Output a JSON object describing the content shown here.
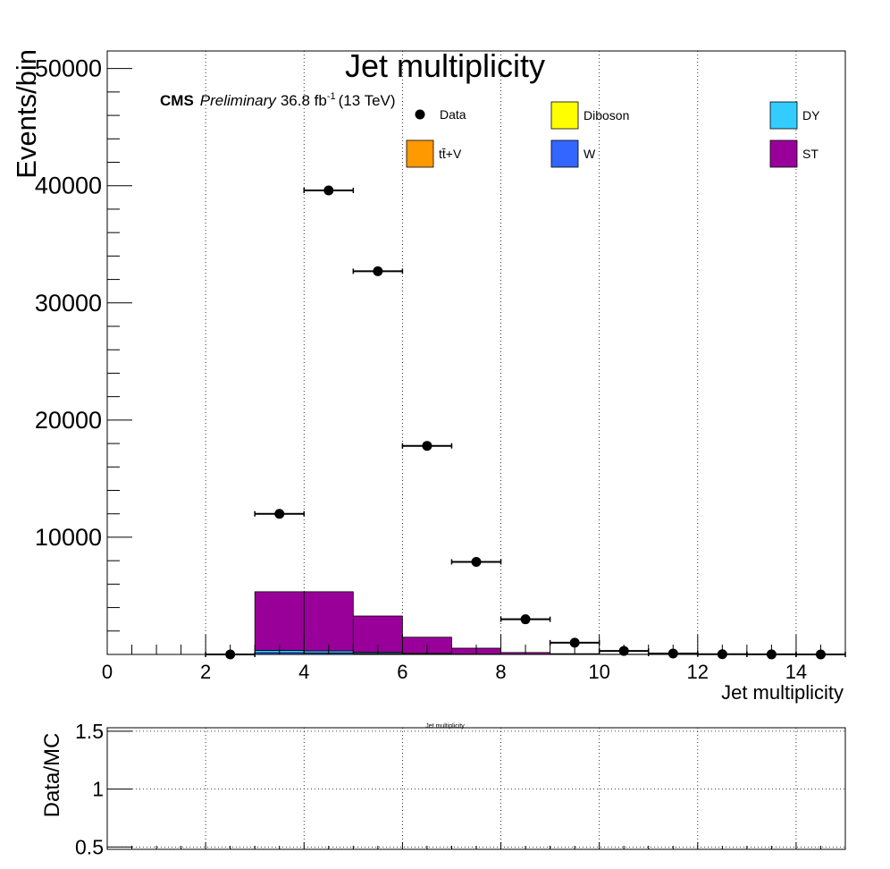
{
  "chart_data": {
    "type": "bar",
    "title": "Jet multiplicity",
    "xlabel": "Jet multiplicity",
    "ylabel": "Events/bin",
    "xlim": [
      0,
      15
    ],
    "ylim": [
      0,
      51500
    ],
    "x_ticks": [
      0,
      2,
      4,
      6,
      8,
      10,
      12,
      14
    ],
    "y_ticks": [
      10000,
      20000,
      30000,
      40000,
      50000
    ],
    "x_tick_labels": [
      "0",
      "2",
      "4",
      "6",
      "8",
      "10",
      "12",
      "14"
    ],
    "y_tick_labels": [
      "10000",
      "20000",
      "30000",
      "40000",
      "50000"
    ],
    "grid": "vertical-dotted",
    "cms_label": {
      "cms": "CMS",
      "preliminary": "Preliminary",
      "lumi": "36.8 fb",
      "lumi_exp": "-1",
      "energy": "(13 TeV)"
    },
    "legend": [
      {
        "name": "Data",
        "kind": "marker",
        "color": "#000000"
      },
      {
        "name": "Diboson",
        "kind": "box",
        "color": "#ffff00"
      },
      {
        "name": "DY",
        "kind": "box",
        "color": "#33ccff"
      },
      {
        "name": "tt̄+V",
        "kind": "box",
        "color": "#ff9900"
      },
      {
        "name": "W",
        "kind": "box",
        "color": "#3366ff"
      },
      {
        "name": "ST",
        "kind": "box",
        "color": "#990099"
      }
    ],
    "bin_edges": [
      2,
      3,
      4,
      5,
      6,
      7,
      8,
      9,
      10,
      11,
      12,
      13,
      14,
      15
    ],
    "series": [
      {
        "name": "W",
        "color": "#3366ff",
        "values": [
          0,
          150,
          130,
          80,
          40,
          15,
          5,
          2,
          0,
          0,
          0,
          0,
          0
        ]
      },
      {
        "name": "DY",
        "color": "#33ccff",
        "values": [
          0,
          200,
          170,
          100,
          50,
          20,
          8,
          3,
          0,
          0,
          0,
          0,
          0
        ]
      },
      {
        "name": "ST",
        "color": "#990099",
        "values": [
          0,
          5000,
          5050,
          3100,
          1380,
          500,
          150,
          60,
          20,
          5,
          0,
          0,
          0
        ]
      }
    ],
    "data_points": {
      "name": "Data",
      "x": [
        2.5,
        3.5,
        4.5,
        5.5,
        6.5,
        7.5,
        8.5,
        9.5,
        10.5,
        11.5,
        12.5,
        13.5,
        14.5
      ],
      "y": [
        0,
        12000,
        39600,
        32700,
        17800,
        7900,
        3000,
        1000,
        300,
        80,
        20,
        5,
        0
      ],
      "xerr": 0.5
    },
    "ratio_panel": {
      "ylabel": "Data/MC",
      "title": "Jet multiplicity",
      "ylim": [
        0.48,
        1.53
      ],
      "y_ticks": [
        0.5,
        1,
        1.5
      ],
      "y_tick_labels": [
        "0.5",
        "1",
        "1.5"
      ]
    }
  }
}
